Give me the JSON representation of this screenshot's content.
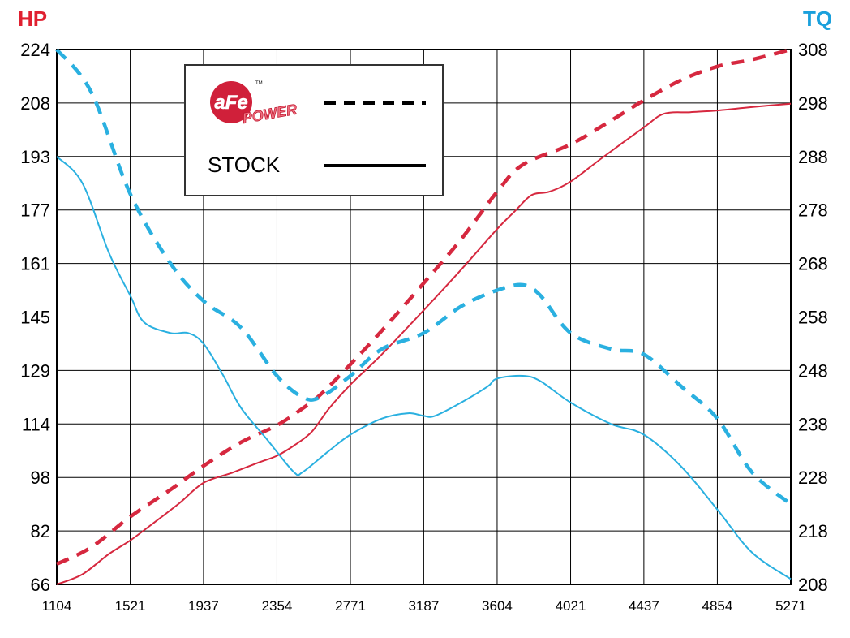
{
  "chart_data": {
    "type": "line",
    "left_axis_title": "HP",
    "right_axis_title": "TQ",
    "x_ticks": [
      1104,
      1521,
      1937,
      2354,
      2771,
      3187,
      3604,
      4021,
      4437,
      4854,
      5271
    ],
    "hp_ticks": [
      224,
      208,
      193,
      177,
      161,
      145,
      129,
      114,
      98,
      82,
      66
    ],
    "tq_ticks": [
      308,
      298,
      288,
      278,
      268,
      258,
      248,
      238,
      228,
      218,
      208
    ],
    "hp_ylim": [
      66,
      224
    ],
    "tq_ylim": [
      208,
      308
    ],
    "xlim": [
      1104,
      5271
    ],
    "grid": true,
    "colors": {
      "hp": "#d6283f",
      "tq": "#2ab0e0",
      "hp_axis": "#e02030",
      "tq_axis": "#1aa0dc"
    },
    "legend": {
      "position": "top-left",
      "logo_text": "aFe",
      "logo_subtext": "POWER",
      "logo_tm": "TM",
      "stock_label": "STOCK"
    },
    "series": [
      {
        "axis": "hp",
        "style": "dashed",
        "color": "#d6283f",
        "x": [
          1104,
          1300,
          1521,
          1750,
          1937,
          2150,
          2354,
          2500,
          2600,
          2771,
          2950,
          3187,
          3400,
          3604,
          3750,
          4021,
          4250,
          4437,
          4650,
          4854,
          5050,
          5271
        ],
        "y": [
          72,
          77,
          86,
          94,
          101,
          108,
          113,
          118,
          122,
          131,
          141,
          155,
          168,
          182,
          190,
          196,
          203,
          209,
          215,
          219,
          221,
          224
        ]
      },
      {
        "axis": "hp",
        "style": "solid",
        "color": "#d6283f",
        "x": [
          1104,
          1250,
          1400,
          1521,
          1650,
          1800,
          1937,
          2100,
          2250,
          2354,
          2450,
          2550,
          2650,
          2771,
          2950,
          3187,
          3400,
          3604,
          3700,
          3800,
          3900,
          4021,
          4200,
          4437,
          4550,
          4700,
          4854,
          5050,
          5271
        ],
        "y": [
          66,
          69,
          75,
          79,
          84,
          90,
          96,
          99,
          102,
          104,
          107,
          111,
          118,
          125,
          134,
          147,
          159,
          171,
          176,
          181,
          182,
          185,
          192,
          201,
          205,
          205.5,
          206,
          207,
          208
        ]
      },
      {
        "axis": "tq",
        "style": "dashed",
        "color": "#2ab0e0",
        "x": [
          1104,
          1300,
          1521,
          1750,
          1937,
          2150,
          2354,
          2500,
          2600,
          2771,
          2950,
          3187,
          3400,
          3604,
          3750,
          3850,
          4021,
          4250,
          4437,
          4650,
          4854,
          5050,
          5271
        ],
        "y": [
          308,
          300,
          281,
          268,
          261,
          256,
          247,
          243,
          243,
          247,
          252,
          255,
          260,
          263,
          264,
          262,
          255,
          252,
          251,
          245,
          239,
          229,
          223
        ]
      },
      {
        "axis": "tq",
        "style": "solid",
        "color": "#2ab0e0",
        "x": [
          1104,
          1250,
          1400,
          1521,
          1600,
          1750,
          1850,
          1937,
          2050,
          2150,
          2300,
          2450,
          2500,
          2650,
          2771,
          2950,
          3100,
          3187,
          3250,
          3400,
          3550,
          3604,
          3750,
          3850,
          4021,
          4250,
          4437,
          4650,
          4854,
          5050,
          5271
        ],
        "y": [
          288,
          283,
          270,
          262,
          257,
          255,
          255,
          253,
          247,
          241,
          235,
          229,
          229,
          233,
          236,
          239,
          240,
          239.5,
          239.5,
          242,
          245,
          246.5,
          247,
          246,
          242,
          238,
          236,
          230,
          222,
          214,
          209
        ]
      }
    ]
  }
}
